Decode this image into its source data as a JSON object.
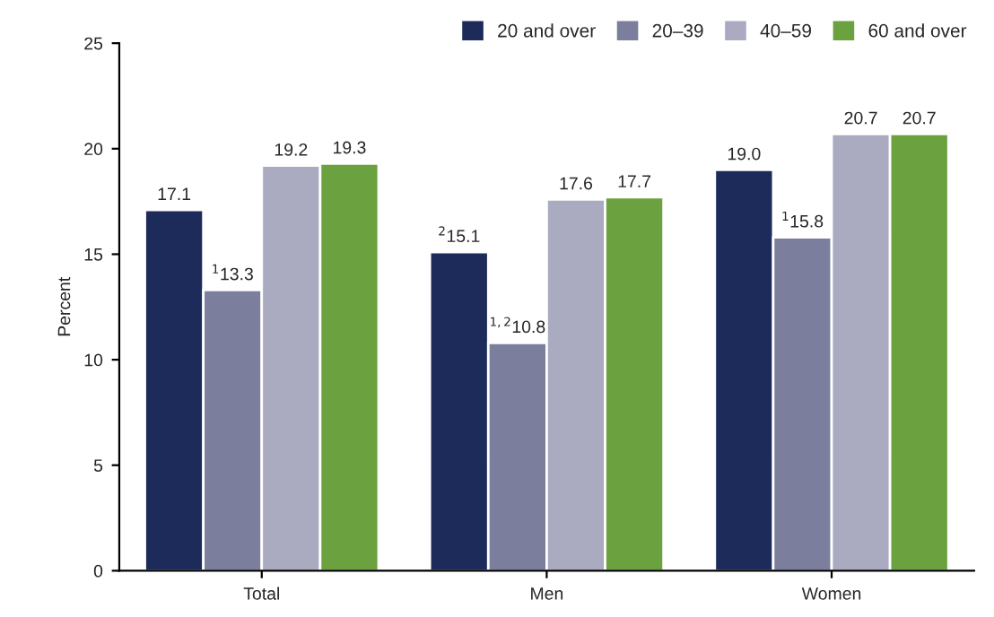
{
  "chart_data": {
    "type": "bar",
    "ylabel": "Percent",
    "categories": [
      "Total",
      "Men",
      "Women"
    ],
    "series": [
      {
        "name": "20 and over",
        "color": "#1c2b5a",
        "values": [
          17.1,
          15.1,
          19.0
        ],
        "value_labels": [
          "17.1",
          "$^{2}$15.1",
          "19.0"
        ]
      },
      {
        "name": "20–39",
        "color": "#7b7e9c",
        "values": [
          13.3,
          10.8,
          15.8
        ],
        "value_labels": [
          "$^{1}$13.3",
          "$^{1,2}$10.8",
          "$^{1}$15.8"
        ]
      },
      {
        "name": "40–59",
        "color": "#aaaac0",
        "values": [
          19.2,
          17.6,
          20.7
        ],
        "value_labels": [
          "19.2",
          "17.6",
          "20.7"
        ]
      },
      {
        "name": "60 and over",
        "color": "#6ba23f",
        "values": [
          19.3,
          17.7,
          20.7
        ],
        "value_labels": [
          "19.3",
          "17.7",
          "20.7"
        ]
      }
    ],
    "ylim": [
      0,
      25
    ],
    "yticks": [
      0,
      5,
      10,
      15,
      20,
      25
    ],
    "grid": false,
    "legend": "top right"
  }
}
